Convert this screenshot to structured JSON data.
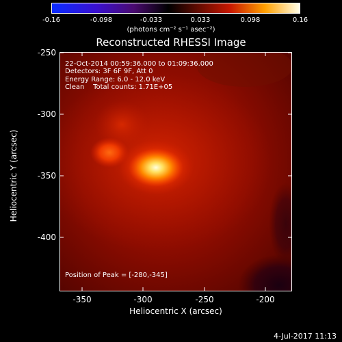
{
  "title": "Reconstructed RHESSI Image",
  "colorbar": {
    "ticks": [
      "-0.16",
      "-0.098",
      "-0.033",
      "0.033",
      "0.098",
      "0.16"
    ],
    "units": "(photons cm⁻² s⁻¹ asec⁻²)"
  },
  "info": {
    "line1": "22-Oct-2014 00:59:36.000 to 01:09:36.000",
    "line2": "Detectors: 3F 6F 9F, Att 0",
    "line3": "Energy Range: 6.0 - 12.0 keV",
    "line4": "Clean    Total counts: 1.71E+05",
    "peak": "Position of Peak = [-280,-345]"
  },
  "axes": {
    "xlabel": "Heliocentric X (arcsec)",
    "ylabel": "Heliocentric Y (arcsec)",
    "xticks": [
      "-350",
      "-300",
      "-250",
      "-200"
    ],
    "yticks": [
      "-250",
      "-300",
      "-350",
      "-400"
    ],
    "xlim": [
      -362,
      -172
    ],
    "ylim": [
      -445,
      -250
    ]
  },
  "footer": {
    "date": "4-Jul-2017 11:13"
  }
}
